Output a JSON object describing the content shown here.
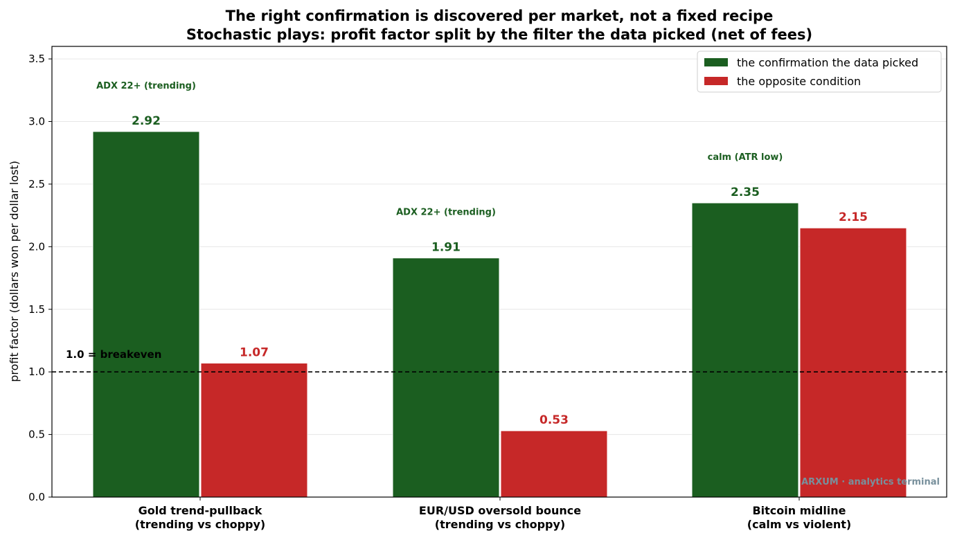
{
  "chart_data": {
    "type": "bar",
    "title": "The right confirmation is discovered per market, not a fixed recipe",
    "subtitle": "Stochastic plays: profit factor split by the filter the data picked (net of fees)",
    "xlabel": "",
    "ylabel": "profit factor (dollars won per dollar lost)",
    "ylim": [
      0,
      3.6
    ],
    "yticks": [
      "0.0",
      "0.5",
      "1.0",
      "1.5",
      "2.0",
      "2.5",
      "3.0",
      "3.5"
    ],
    "ytick_values": [
      0,
      0.5,
      1.0,
      1.5,
      2.0,
      2.5,
      3.0,
      3.5
    ],
    "grid": true,
    "legend_position": "top-right",
    "categories": [
      [
        "Gold trend-pullback",
        "(trending vs choppy)"
      ],
      [
        "EUR/USD oversold bounce",
        "(trending vs choppy)"
      ],
      [
        "Bitcoin midline",
        "(calm vs violent)"
      ]
    ],
    "series": [
      {
        "name": "the confirmation the data picked",
        "color": "#1b5e20",
        "values": [
          2.92,
          1.91,
          2.35
        ],
        "labels": [
          "2.92",
          "1.91",
          "2.35"
        ]
      },
      {
        "name": "the opposite condition",
        "color": "#c62828",
        "values": [
          1.07,
          0.53,
          2.15
        ],
        "labels": [
          "1.07",
          "0.53",
          "2.15"
        ]
      }
    ],
    "condition_labels": [
      "ADX 22+ (trending)",
      "ADX 22+ (trending)",
      "calm (ATR low)"
    ],
    "reference_line": {
      "value": 1.0,
      "label": "1.0 = breakeven"
    },
    "watermark": "ARXUM · analytics terminal",
    "watermark_color": "#78909c"
  }
}
